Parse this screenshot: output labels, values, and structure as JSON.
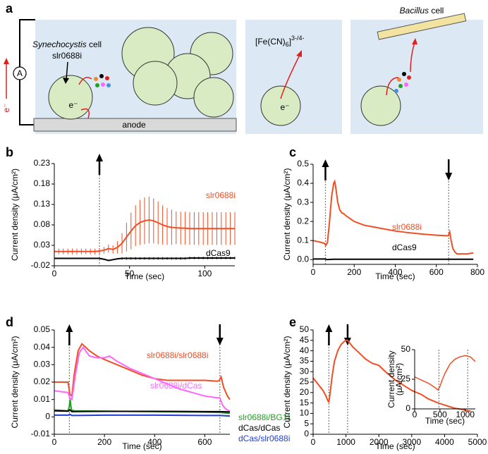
{
  "diagram": {
    "panel": "a",
    "cell_species": "Synechocystis",
    "cell_word": "cell",
    "strain": "slr0688i",
    "electron": "e⁻",
    "ammeter": "A",
    "electrode": "anode",
    "mediator": [
      "[Fe(CN)",
      "6",
      "]",
      "3-/4-"
    ],
    "bacterium_species": "Bacillus",
    "bacterium_word": "cell"
  },
  "chart_data": [
    {
      "type": "line",
      "panel": "b",
      "xlabel": "Time (sec)",
      "ylabel": "Current density (μA/cm²)",
      "xlim": [
        0,
        120
      ],
      "xticks": [
        0,
        50,
        100
      ],
      "ylim": [
        -0.02,
        0.23
      ],
      "yticks": [
        -0.02,
        0.03,
        0.08,
        0.13,
        0.18,
        0.23
      ],
      "events": [
        {
          "x": 30,
          "direction": "up"
        }
      ],
      "series": [
        {
          "name": "slr0688i",
          "color": "#f04e23",
          "x": [
            0,
            3,
            6,
            9,
            12,
            15,
            18,
            21,
            24,
            27,
            30,
            33,
            36,
            39,
            42,
            45,
            48,
            51,
            54,
            57,
            60,
            63,
            66,
            69,
            72,
            75,
            78,
            81,
            84,
            87,
            90,
            93,
            96,
            99,
            102,
            105,
            108,
            111,
            114,
            117,
            120
          ],
          "values": [
            0.015,
            0.015,
            0.015,
            0.015,
            0.015,
            0.015,
            0.015,
            0.015,
            0.015,
            0.015,
            0.016,
            0.018,
            0.022,
            0.02,
            0.025,
            0.035,
            0.05,
            0.065,
            0.078,
            0.086,
            0.09,
            0.092,
            0.09,
            0.085,
            0.08,
            0.076,
            0.074,
            0.073,
            0.072,
            0.072,
            0.071,
            0.071,
            0.071,
            0.071,
            0.071,
            0.071,
            0.071,
            0.071,
            0.071,
            0.071,
            0.071
          ],
          "errors": [
            0.007,
            0.007,
            0.007,
            0.007,
            0.007,
            0.007,
            0.007,
            0.007,
            0.007,
            0.007,
            0.007,
            0.008,
            0.01,
            0.01,
            0.015,
            0.025,
            0.035,
            0.045,
            0.05,
            0.055,
            0.057,
            0.057,
            0.055,
            0.052,
            0.048,
            0.045,
            0.043,
            0.04,
            0.04,
            0.04,
            0.04,
            0.04,
            0.04,
            0.04,
            0.04,
            0.04,
            0.04,
            0.04,
            0.04,
            0.04,
            0.04
          ]
        },
        {
          "name": "dCas9",
          "color": "#000000",
          "x": [
            0,
            3,
            6,
            9,
            12,
            15,
            18,
            21,
            24,
            27,
            30,
            33,
            36,
            39,
            42,
            45,
            48,
            51,
            54,
            57,
            60,
            63,
            66,
            69,
            72,
            75,
            78,
            81,
            84,
            87,
            90,
            93,
            96,
            99,
            102,
            105,
            108,
            111,
            114,
            117,
            120
          ],
          "values": [
            -0.002,
            -0.002,
            -0.002,
            -0.002,
            -0.002,
            -0.002,
            -0.002,
            -0.002,
            -0.002,
            -0.002,
            -0.002,
            -0.004,
            -0.007,
            -0.005,
            -0.003,
            -0.002,
            -0.002,
            -0.002,
            -0.002,
            -0.002,
            -0.002,
            -0.002,
            -0.002,
            -0.002,
            -0.002,
            -0.002,
            -0.002,
            -0.002,
            -0.002,
            -0.002,
            -0.001,
            -0.001,
            -0.001,
            -0.001,
            -0.001,
            -0.001,
            -0.001,
            -0.001,
            -0.001,
            -0.001,
            -0.001
          ],
          "errors": [
            0.001,
            0.001,
            0.001,
            0.001,
            0.001,
            0.001,
            0.001,
            0.001,
            0.001,
            0.001,
            0.001,
            0.001,
            0.001,
            0.001,
            0.001,
            0.003,
            0.003,
            0.003,
            0.003,
            0.003,
            0.003,
            0.003,
            0.003,
            0.003,
            0.003,
            0.003,
            0.003,
            0.003,
            0.003,
            0.003,
            0.003,
            0.003,
            0.003,
            0.003,
            0.003,
            0.003,
            0.003,
            0.003,
            0.003,
            0.003,
            0.003
          ]
        }
      ]
    },
    {
      "type": "line",
      "panel": "c",
      "xlabel": "Time (sec)",
      "ylabel": "Current density (μA/cm²)",
      "xlim": [
        0,
        800
      ],
      "xticks": [
        0,
        200,
        400,
        600,
        800
      ],
      "ylim": [
        -0.025,
        0.5
      ],
      "yticks": [
        {
          "value": 0,
          "label": "0.0"
        },
        0.1,
        0.2,
        0.3,
        0.4,
        0.5
      ],
      "events": [
        {
          "x": 60,
          "direction": "up"
        },
        {
          "x": 660,
          "direction": "down"
        }
      ],
      "series": [
        {
          "name": "slr0688i",
          "color": "#f04e23",
          "x": [
            0,
            20,
            40,
            55,
            62,
            70,
            80,
            90,
            100,
            105,
            110,
            120,
            130,
            140,
            150,
            160,
            180,
            200,
            250,
            300,
            350,
            400,
            450,
            500,
            550,
            600,
            650,
            658,
            665,
            672,
            680,
            690,
            700,
            750,
            780
          ],
          "values": [
            0.1,
            0.095,
            0.09,
            0.085,
            0.075,
            0.09,
            0.2,
            0.33,
            0.4,
            0.41,
            0.38,
            0.3,
            0.26,
            0.245,
            0.24,
            0.23,
            0.215,
            0.2,
            0.18,
            0.17,
            0.16,
            0.15,
            0.143,
            0.137,
            0.132,
            0.128,
            0.125,
            0.125,
            0.145,
            0.1,
            0.06,
            0.04,
            0.03,
            0.03,
            0.035
          ]
        },
        {
          "name": "dCas9",
          "color": "#000000",
          "x": [
            0,
            60,
            65,
            100,
            400,
            700,
            780
          ],
          "values": [
            0.003,
            0.003,
            0.0,
            0.002,
            0.002,
            0.002,
            0.002
          ]
        }
      ]
    },
    {
      "type": "line",
      "panel": "d",
      "xlabel": "Time (sec)",
      "ylabel": "Current density (μA/cm²)",
      "xlim": [
        0,
        700
      ],
      "xticks": [
        0,
        200,
        400,
        600
      ],
      "ylim": [
        -0.01,
        0.05
      ],
      "yticks": [
        -0.01,
        0,
        0.01,
        0.02,
        0.03,
        0.04,
        0.05
      ],
      "events": [
        {
          "x": 60,
          "direction": "up"
        },
        {
          "x": 660,
          "direction": "down"
        }
      ],
      "series": [
        {
          "name": "slr0688i/slr0688i",
          "color": "#f04e23",
          "x": [
            0,
            55,
            62,
            70,
            80,
            95,
            110,
            125,
            140,
            170,
            200,
            250,
            300,
            350,
            400,
            450,
            500,
            550,
            600,
            650,
            658,
            665,
            675,
            690,
            700
          ],
          "values": [
            0.02,
            0.02,
            0.013,
            0.012,
            0.025,
            0.038,
            0.042,
            0.04,
            0.038,
            0.035,
            0.033,
            0.03,
            0.027,
            0.024,
            0.022,
            0.021,
            0.021,
            0.021,
            0.021,
            0.0205,
            0.021,
            0.023,
            0.017,
            0.012,
            0.01
          ]
        },
        {
          "name": "slr0688i/dCas",
          "color": "#ff66ff",
          "x": [
            0,
            55,
            62,
            70,
            85,
            100,
            115,
            140,
            170,
            200,
            220,
            250,
            300,
            350,
            400,
            450,
            500,
            550,
            600,
            650,
            660,
            670,
            680,
            700
          ],
          "values": [
            0.015,
            0.014,
            0.011,
            0.01,
            0.025,
            0.037,
            0.04,
            0.035,
            0.034,
            0.034,
            0.035,
            0.032,
            0.028,
            0.025,
            0.022,
            0.019,
            0.016,
            0.014,
            0.012,
            0.011,
            0.011,
            0.007,
            0.005,
            0.003
          ]
        },
        {
          "name": "slr0688i/BG11",
          "color": "#22a022",
          "x": [
            0,
            55,
            60,
            63,
            68,
            80,
            200,
            400,
            600,
            660,
            700
          ],
          "values": [
            0.004,
            0.0035,
            0.006,
            0.01,
            0.004,
            0.0035,
            0.0033,
            0.003,
            0.0027,
            0.0025,
            0.002
          ]
        },
        {
          "name": "dCas/dCas",
          "color": "#000000",
          "x": [
            0,
            55,
            62,
            70,
            200,
            400,
            600,
            660,
            700
          ],
          "values": [
            0.0035,
            0.0033,
            0.004,
            0.003,
            0.0032,
            0.0032,
            0.003,
            0.003,
            0.0028
          ]
        },
        {
          "name": "dCas/slr0688i",
          "color": "#1f3ed6",
          "x": [
            0,
            55,
            62,
            70,
            200,
            400,
            600,
            660,
            700
          ],
          "values": [
            0.001,
            0.001,
            0.0015,
            0.0008,
            0.001,
            0.001,
            0.0008,
            0.0008,
            0.0005
          ]
        }
      ]
    },
    {
      "type": "line",
      "panel": "e",
      "xlabel": "Time (sec)",
      "ylabel": "Current density (μA/cm²)",
      "xlim": [
        0,
        5000
      ],
      "xticks": [
        0,
        1000,
        2000,
        3000,
        4000,
        5000
      ],
      "ylim": [
        0,
        50
      ],
      "yticks": [
        0,
        5,
        10,
        15,
        20,
        25,
        30,
        35,
        40,
        45,
        50
      ],
      "events": [
        {
          "x": 480,
          "direction": "up"
        },
        {
          "x": 1050,
          "direction": "down"
        }
      ],
      "series": [
        {
          "color": "#f04e23",
          "x": [
            0,
            100,
            200,
            300,
            400,
            450,
            480,
            520,
            580,
            650,
            750,
            850,
            950,
            1000,
            1050,
            1200,
            1400,
            1600,
            1800,
            2000,
            2200,
            2500,
            2800,
            3000,
            3300,
            3500,
            3800,
            4000,
            4300,
            4500,
            4800
          ],
          "values": [
            27,
            25,
            23,
            21,
            18,
            16,
            15.5,
            20,
            28,
            35,
            40,
            43,
            44.5,
            45,
            45,
            42,
            39,
            36,
            34,
            33,
            30,
            26,
            23,
            21,
            19,
            17,
            15,
            14,
            12.5,
            12,
            11
          ]
        }
      ]
    },
    {
      "type": "line",
      "xlabel": "Time (sec)",
      "ylabel": [
        "Current density",
        "(μA/cm²)"
      ],
      "xlim": [
        0,
        1200
      ],
      "xticks": [
        0,
        500,
        1000
      ],
      "ylim": [
        0,
        50
      ],
      "yticks": [
        0,
        25,
        50
      ],
      "events": [
        {
          "x": 480
        },
        {
          "x": 1050
        }
      ],
      "series": [
        {
          "color": "#f04e23",
          "x": [
            0,
            100,
            200,
            300,
            400,
            460,
            500,
            550,
            600,
            700,
            800,
            900,
            1000,
            1100,
            1200
          ],
          "values": [
            27,
            25,
            23,
            21,
            18,
            16,
            19,
            25,
            30,
            38,
            42,
            44,
            45,
            44,
            40
          ]
        }
      ]
    }
  ]
}
